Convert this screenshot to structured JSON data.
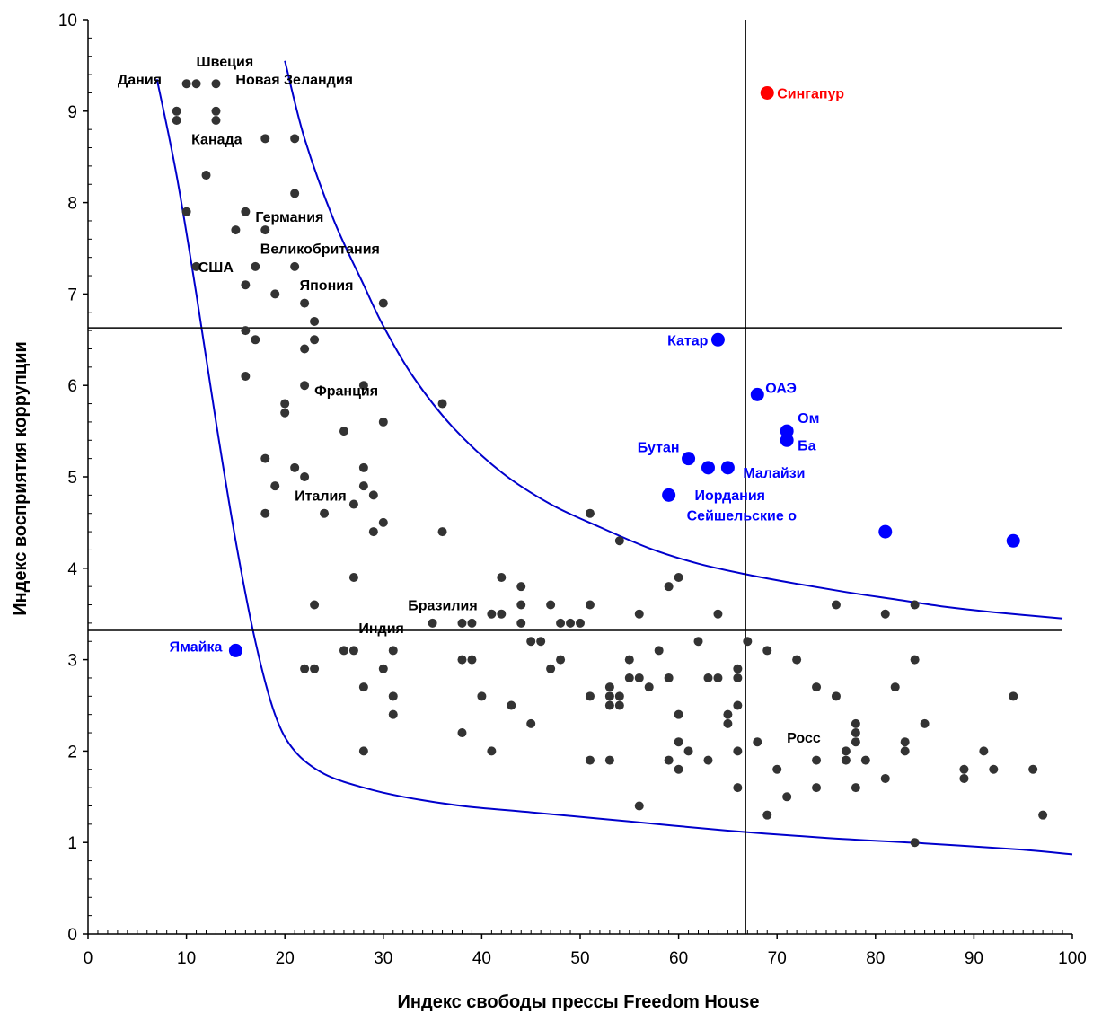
{
  "chart_data": {
    "type": "scatter",
    "title": "",
    "xlabel": "Индекс свободы прессы Freedom House",
    "ylabel": "Индекс восприятия коррупции",
    "xlim": [
      0,
      100
    ],
    "ylim": [
      0,
      10
    ],
    "xticks": [
      "0",
      "10",
      "20",
      "30",
      "40",
      "50",
      "60",
      "70",
      "80",
      "90",
      "100"
    ],
    "yticks": [
      "0",
      "1",
      "2",
      "3",
      "4",
      "5",
      "6",
      "7",
      "8",
      "9",
      "10"
    ],
    "grid": false,
    "legend": "none",
    "colors": {
      "generic": "#333333",
      "highlight": "#0000ff",
      "singapore": "#ff0000",
      "curve": "#0000cc",
      "reference_line": "#000000"
    },
    "reference_lines": {
      "vertical_x": 66.8,
      "horizontal_y": [
        6.63,
        3.32
      ]
    },
    "curves": [
      {
        "name": "left-boundary",
        "x": [
          7,
          9,
          11,
          13,
          15,
          17,
          19,
          21,
          24,
          28,
          32,
          38,
          45,
          55,
          65,
          75,
          85,
          95,
          100
        ],
        "y": [
          9.35,
          8.3,
          7.0,
          5.6,
          4.3,
          3.2,
          2.4,
          2.0,
          1.75,
          1.6,
          1.5,
          1.4,
          1.33,
          1.23,
          1.13,
          1.05,
          0.99,
          0.92,
          0.87
        ]
      },
      {
        "name": "right-boundary",
        "x": [
          20,
          22,
          25,
          28,
          30,
          33,
          37,
          42,
          47,
          52,
          57,
          62,
          67,
          72,
          77,
          82,
          87,
          92,
          99
        ],
        "y": [
          9.55,
          8.7,
          7.8,
          7.1,
          6.65,
          6.1,
          5.55,
          5.05,
          4.7,
          4.45,
          4.22,
          4.05,
          3.93,
          3.83,
          3.74,
          3.66,
          3.58,
          3.52,
          3.45
        ]
      }
    ],
    "points": [
      [
        10,
        9.3
      ],
      [
        11,
        9.3
      ],
      [
        13,
        9.3
      ],
      [
        9,
        9.0
      ],
      [
        9,
        8.9
      ],
      [
        13,
        9.0
      ],
      [
        13,
        8.9
      ],
      [
        18,
        8.7
      ],
      [
        21,
        8.7
      ],
      [
        12,
        8.3
      ],
      [
        21,
        8.1
      ],
      [
        10,
        7.9
      ],
      [
        16,
        7.9
      ],
      [
        15,
        7.7
      ],
      [
        18,
        7.7
      ],
      [
        11,
        7.3
      ],
      [
        17,
        7.3
      ],
      [
        21,
        7.3
      ],
      [
        16,
        7.1
      ],
      [
        19,
        7.0
      ],
      [
        22,
        6.9
      ],
      [
        30,
        6.9
      ],
      [
        23,
        6.7
      ],
      [
        16,
        6.6
      ],
      [
        17,
        6.5
      ],
      [
        23,
        6.5
      ],
      [
        22,
        6.4
      ],
      [
        16,
        6.1
      ],
      [
        22,
        6.0
      ],
      [
        28,
        6.0
      ],
      [
        20,
        5.8
      ],
      [
        20,
        5.7
      ],
      [
        36,
        5.8
      ],
      [
        30,
        5.6
      ],
      [
        26,
        5.5
      ],
      [
        18,
        5.2
      ],
      [
        21,
        5.1
      ],
      [
        28,
        5.1
      ],
      [
        22,
        5.0
      ],
      [
        19,
        4.9
      ],
      [
        28,
        4.9
      ],
      [
        29,
        4.8
      ],
      [
        27,
        4.7
      ],
      [
        24,
        4.6
      ],
      [
        18,
        4.6
      ],
      [
        30,
        4.5
      ],
      [
        29,
        4.4
      ],
      [
        36,
        4.4
      ],
      [
        27,
        3.9
      ],
      [
        42,
        3.9
      ],
      [
        23,
        3.6
      ],
      [
        44,
        3.6
      ],
      [
        44,
        3.8
      ],
      [
        47,
        3.6
      ],
      [
        51,
        3.6
      ],
      [
        41,
        3.5
      ],
      [
        42,
        3.5
      ],
      [
        35,
        3.4
      ],
      [
        38,
        3.4
      ],
      [
        39,
        3.4
      ],
      [
        44,
        3.4
      ],
      [
        48,
        3.4
      ],
      [
        49,
        3.4
      ],
      [
        50,
        3.4
      ],
      [
        56,
        3.5
      ],
      [
        60,
        3.9
      ],
      [
        59,
        3.8
      ],
      [
        64,
        3.5
      ],
      [
        51,
        4.6
      ],
      [
        54,
        4.3
      ],
      [
        45,
        3.2
      ],
      [
        46,
        3.2
      ],
      [
        58,
        3.1
      ],
      [
        62,
        3.2
      ],
      [
        67,
        3.2
      ],
      [
        69,
        3.1
      ],
      [
        26,
        3.1
      ],
      [
        27,
        3.1
      ],
      [
        31,
        3.1
      ],
      [
        22,
        2.9
      ],
      [
        23,
        2.9
      ],
      [
        30,
        2.9
      ],
      [
        38,
        3.0
      ],
      [
        39,
        3.0
      ],
      [
        47,
        2.9
      ],
      [
        48,
        3.0
      ],
      [
        55,
        3.0
      ],
      [
        53,
        2.7
      ],
      [
        53,
        2.6
      ],
      [
        54,
        2.6
      ],
      [
        57,
        2.7
      ],
      [
        55,
        2.8
      ],
      [
        56,
        2.8
      ],
      [
        59,
        2.8
      ],
      [
        63,
        2.8
      ],
      [
        64,
        2.8
      ],
      [
        66,
        2.9
      ],
      [
        66,
        2.8
      ],
      [
        72,
        3.0
      ],
      [
        74,
        2.7
      ],
      [
        76,
        2.6
      ],
      [
        82,
        2.7
      ],
      [
        84,
        3.0
      ],
      [
        28,
        2.7
      ],
      [
        31,
        2.6
      ],
      [
        40,
        2.6
      ],
      [
        51,
        2.6
      ],
      [
        53,
        2.5
      ],
      [
        54,
        2.5
      ],
      [
        43,
        2.5
      ],
      [
        66,
        2.5
      ],
      [
        65,
        2.4
      ],
      [
        60,
        2.4
      ],
      [
        31,
        2.4
      ],
      [
        65,
        2.3
      ],
      [
        45,
        2.3
      ],
      [
        78,
        2.3
      ],
      [
        78,
        2.2
      ],
      [
        38,
        2.2
      ],
      [
        68,
        2.1
      ],
      [
        60,
        2.1
      ],
      [
        78,
        2.1
      ],
      [
        83,
        2.1
      ],
      [
        85,
        2.3
      ],
      [
        28,
        2.0
      ],
      [
        41,
        2.0
      ],
      [
        61,
        2.0
      ],
      [
        66,
        2.0
      ],
      [
        77,
        2.0
      ],
      [
        83,
        2.0
      ],
      [
        51,
        1.9
      ],
      [
        53,
        1.9
      ],
      [
        59,
        1.9
      ],
      [
        63,
        1.9
      ],
      [
        74,
        1.9
      ],
      [
        77,
        1.9
      ],
      [
        79,
        1.9
      ],
      [
        60,
        1.8
      ],
      [
        70,
        1.8
      ],
      [
        89,
        1.8
      ],
      [
        92,
        1.8
      ],
      [
        96,
        1.8
      ],
      [
        81,
        1.7
      ],
      [
        89,
        1.7
      ],
      [
        66,
        1.6
      ],
      [
        74,
        1.6
      ],
      [
        78,
        1.6
      ],
      [
        71,
        1.5
      ],
      [
        56,
        1.4
      ],
      [
        69,
        1.3
      ],
      [
        97,
        1.3
      ],
      [
        84,
        1.0
      ],
      [
        76,
        3.6
      ],
      [
        81,
        3.5
      ],
      [
        84,
        3.6
      ],
      [
        94,
        2.6
      ],
      [
        91,
        2.0
      ]
    ],
    "highlighted_points": [
      {
        "label": "Катар",
        "x": 64,
        "y": 6.5
      },
      {
        "label": "ОАЭ",
        "x": 68,
        "y": 5.9
      },
      {
        "label": "Ом",
        "x": 71,
        "y": 5.5
      },
      {
        "label": "Ба",
        "x": 71,
        "y": 5.4
      },
      {
        "label": "Бутан",
        "x": 61,
        "y": 5.2
      },
      {
        "label": "Малайзи",
        "x": 65,
        "y": 5.1
      },
      {
        "label": "",
        "x": 63,
        "y": 5.1
      },
      {
        "label": "Иордания",
        "x": 63,
        "y": 5.1
      },
      {
        "label": "Сейшельские о",
        "x": 59,
        "y": 4.8
      },
      {
        "label": "",
        "x": 81,
        "y": 4.4
      },
      {
        "label": "",
        "x": 94,
        "y": 4.3
      },
      {
        "label": "Ямайка",
        "x": 15,
        "y": 3.1
      }
    ],
    "singapore_point": {
      "label": "Сингапур",
      "x": 69,
      "y": 9.2
    },
    "annotations": [
      {
        "text": "Дания",
        "x": 3,
        "y": 9.35
      },
      {
        "text": "Швеция",
        "x": 11,
        "y": 9.55
      },
      {
        "text": "Новая Зеландия",
        "x": 15,
        "y": 9.35
      },
      {
        "text": "Канада",
        "x": 10.5,
        "y": 8.7
      },
      {
        "text": "Германия",
        "x": 17,
        "y": 7.85
      },
      {
        "text": "Великобритания",
        "x": 17.5,
        "y": 7.5
      },
      {
        "text": "США",
        "x": 11.2,
        "y": 7.3
      },
      {
        "text": "Япония",
        "x": 21.5,
        "y": 7.1
      },
      {
        "text": "Франция",
        "x": 23,
        "y": 5.95
      },
      {
        "text": "Италия",
        "x": 21,
        "y": 4.8
      },
      {
        "text": "Бразилия",
        "x": 32.5,
        "y": 3.6
      },
      {
        "text": "Индия",
        "x": 27.5,
        "y": 3.35
      },
      {
        "text": "Росс",
        "x": 71,
        "y": 2.15
      }
    ]
  }
}
